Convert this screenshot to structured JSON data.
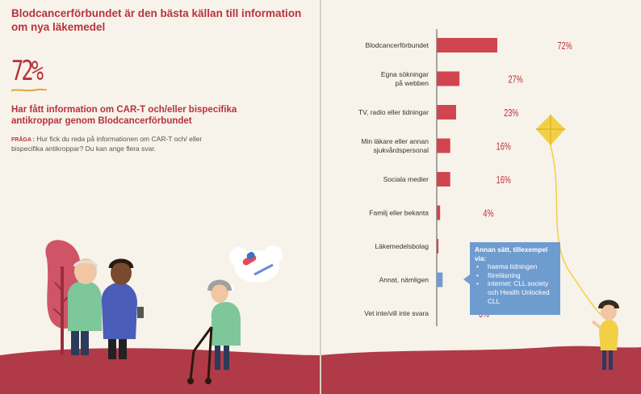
{
  "title": "Blodcancerförbundet är den bästa källan till information om nya läkemedel",
  "highlight": {
    "percent": "72%",
    "text": "Har fått information om CAR-T och/eller bispecifika antikroppar genom Blodcancerförbundet"
  },
  "question": {
    "label": "FRÅGA :",
    "text": "Hur fick du reda på informationen om CAR-T och/ eller bispecifika antikroppar? Du kan ange flera svar."
  },
  "callout": {
    "title": "Annan sätt, tillexempel via:",
    "items": [
      "haema tidningen",
      "föreläsning",
      "internet: CLL society och Health Unlocked CLL"
    ]
  },
  "colors": {
    "bar": "#d04550",
    "accent": "#b8323c",
    "callout": "#6f9ccf",
    "ground": "#b03a48"
  },
  "chart_data": {
    "type": "bar",
    "orientation": "horizontal",
    "categories": [
      "Blodcancerförbundet",
      "Egna sökningar på webben",
      "TV, radio eller tidningar",
      "Min läkare eller annan sjukvårdspersonal",
      "Sociala medier",
      "Familj eller bekanta",
      "Läkemedelsbolag",
      "Annat, nämligen",
      "Vet inte/vill inte svara"
    ],
    "category_lines": [
      [
        "Blodcancerförbundet"
      ],
      [
        "Egna sökningar",
        "på webben"
      ],
      [
        "TV, radio eller tidningar"
      ],
      [
        "Min läkare eller annan",
        "sjukvårdspersonal"
      ],
      [
        "Sociala medier"
      ],
      [
        "Familj eller bekanta"
      ],
      [
        "Läkemedelsbolag"
      ],
      [
        "Annat, nämligen"
      ],
      [
        "Vet inte/vill inte svara"
      ]
    ],
    "values": [
      72,
      27,
      23,
      16,
      16,
      4,
      2,
      7,
      0
    ],
    "value_labels": [
      "72%",
      "27%",
      "23%",
      "16%",
      "16%",
      "4%",
      "2%",
      "7%",
      "0%"
    ],
    "highlight_index": 7,
    "xlim": [
      0,
      100
    ]
  }
}
